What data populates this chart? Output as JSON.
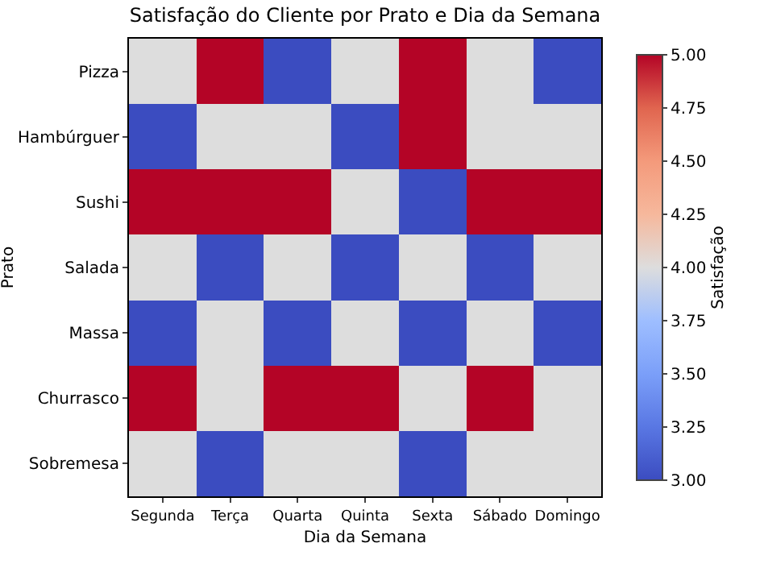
{
  "chart_data": {
    "type": "heatmap",
    "title": "Satisfação do Cliente por Prato e Dia da Semana",
    "xlabel": "Dia da Semana",
    "ylabel": "Prato",
    "clabel": "Satisfação",
    "categories": [
      "Segunda",
      "Terça",
      "Quarta",
      "Quinta",
      "Sexta",
      "Sábado",
      "Domingo"
    ],
    "y_categories": [
      "Pizza",
      "Hambúrguer",
      "Sushi",
      "Salada",
      "Massa",
      "Churrasco",
      "Sobremesa"
    ],
    "cells": [
      [
        4,
        5,
        3,
        4,
        5,
        4,
        3
      ],
      [
        3,
        4,
        4,
        3,
        5,
        4,
        4
      ],
      [
        5,
        5,
        5,
        4,
        3,
        5,
        5
      ],
      [
        4,
        3,
        4,
        3,
        4,
        3,
        4
      ],
      [
        3,
        4,
        3,
        4,
        3,
        4,
        3
      ],
      [
        5,
        4,
        5,
        5,
        4,
        5,
        4
      ],
      [
        4,
        3,
        4,
        4,
        3,
        4,
        4
      ]
    ],
    "clim": [
      3,
      5
    ],
    "cticks": [
      {
        "value": 3,
        "label": "3.00"
      },
      {
        "value": 3.25,
        "label": "3.25"
      },
      {
        "value": 3.5,
        "label": "3.50"
      },
      {
        "value": 3.75,
        "label": "3.75"
      },
      {
        "value": 4,
        "label": "4.00"
      },
      {
        "value": 4.25,
        "label": "4.25"
      },
      {
        "value": 4.5,
        "label": "4.50"
      },
      {
        "value": 4.75,
        "label": "4.75"
      },
      {
        "value": 5,
        "label": "5.00"
      }
    ]
  }
}
